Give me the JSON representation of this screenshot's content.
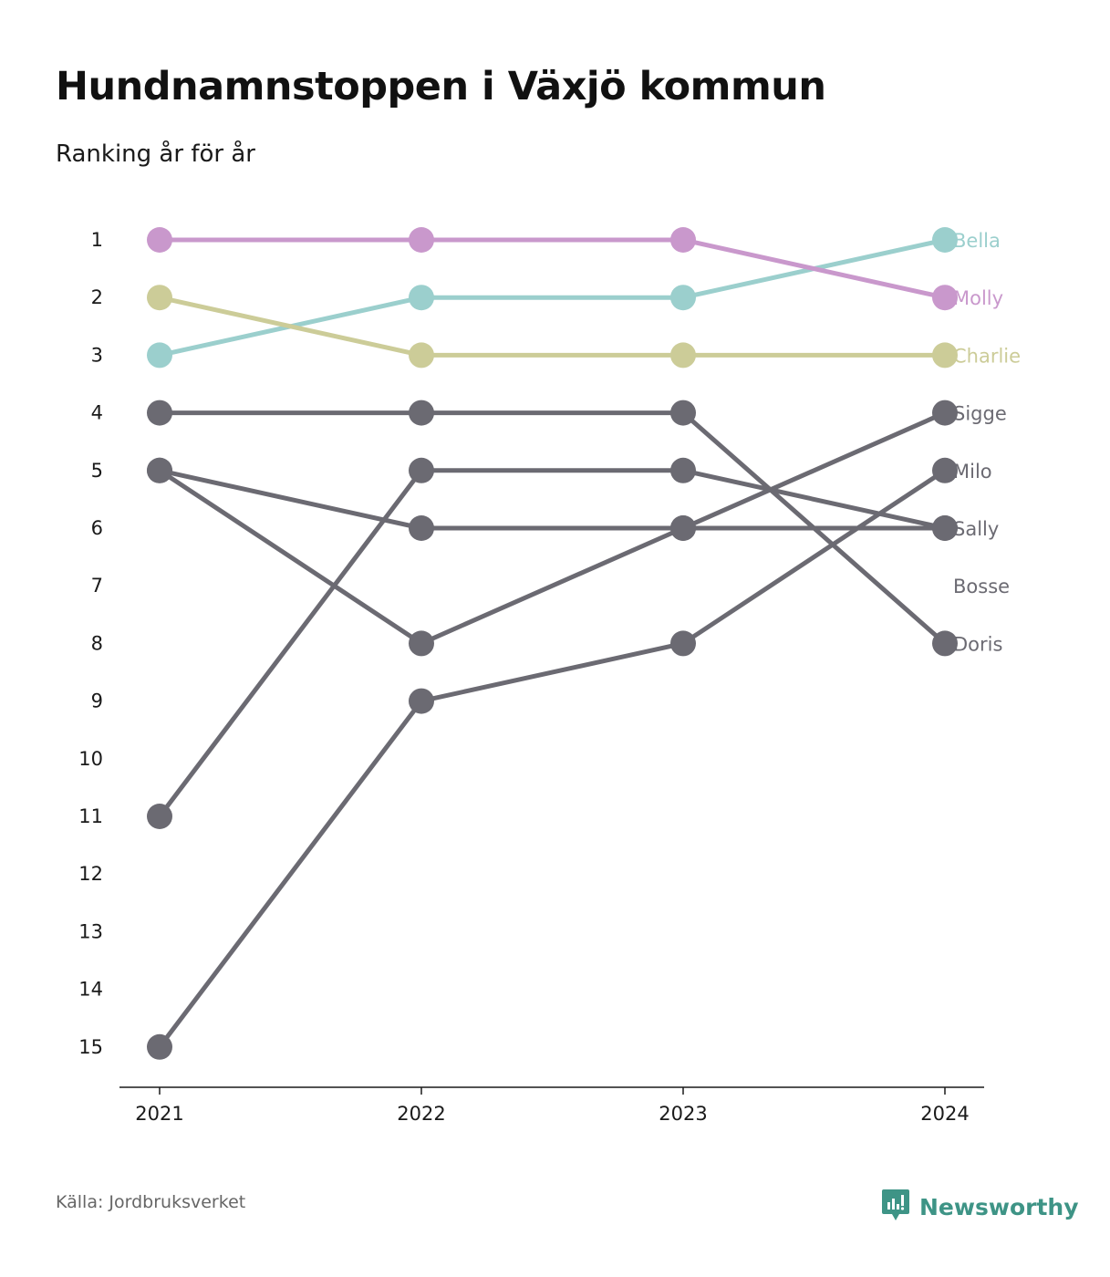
{
  "title": "Hundnamnstoppen i Växjö kommun",
  "subtitle": "Ranking år för år",
  "source": "Källa: Jordbruksverket",
  "brand": {
    "name": "Newsworthy",
    "icon": "newsworthy-logo-icon",
    "color": "#3e9486"
  },
  "chart_data": {
    "type": "line",
    "x": [
      "2021",
      "2022",
      "2023",
      "2024"
    ],
    "y_ticks": [
      1,
      2,
      3,
      4,
      5,
      6,
      7,
      8,
      9,
      10,
      11,
      12,
      13,
      14,
      15
    ],
    "ylim": [
      1,
      15
    ],
    "y_inverted": true,
    "grid": false,
    "legend": "labels at right end of lines",
    "series": [
      {
        "name": "Bella",
        "values": [
          3,
          2,
          2,
          1
        ],
        "color": "#9bcfcd"
      },
      {
        "name": "Molly",
        "values": [
          1,
          1,
          1,
          2
        ],
        "color": "#c998cc"
      },
      {
        "name": "Charlie",
        "values": [
          2,
          3,
          3,
          3
        ],
        "color": "#cccc98"
      },
      {
        "name": "Sigge",
        "values": [
          5,
          8,
          6,
          4
        ],
        "color": "#6b6a72"
      },
      {
        "name": "Milo",
        "values": [
          15,
          9,
          8,
          5
        ],
        "color": "#6b6a72"
      },
      {
        "name": "Sally",
        "values": [
          5,
          6,
          6,
          6
        ],
        "color": "#6b6a72"
      },
      {
        "name": "Bosse",
        "values": [
          11,
          5,
          5,
          6
        ],
        "color": "#6b6a72",
        "label_rank": 7
      },
      {
        "name": "Doris",
        "values": [
          4,
          4,
          4,
          8
        ],
        "color": "#6b6a72"
      }
    ]
  }
}
